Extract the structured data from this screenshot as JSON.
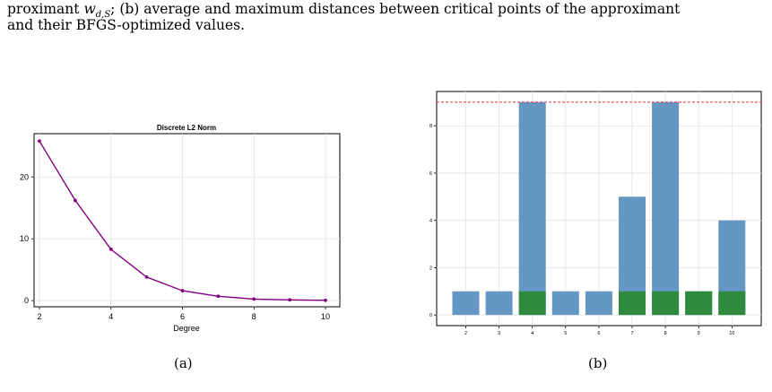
{
  "caption": {
    "line1_prefix": "proximant ",
    "line1_math": "w",
    "line1_sub": "d,S",
    "line1_suffix": "; (b) average and maximum distances between critical points of the approximant",
    "line2": "and their BFGS-optimized values."
  },
  "subfigure_labels": [
    "(a)",
    "(b)"
  ],
  "colors": {
    "line": "#800080",
    "bar_blue": "#6497c3",
    "bar_green": "#2e8b3e",
    "dashed": "#e0303a",
    "grid": "#e3e3e3"
  },
  "chart_data": [
    {
      "type": "line",
      "title": "Discrete L2 Norm",
      "xlabel": "Degree",
      "ylabel": "",
      "x": [
        2,
        3,
        4,
        5,
        6,
        7,
        8,
        9,
        10
      ],
      "y": [
        25.8,
        16.2,
        8.3,
        3.8,
        1.6,
        0.7,
        0.25,
        0.12,
        0.05
      ],
      "xticks": [
        2,
        4,
        6,
        8,
        10
      ],
      "yticks": [
        0,
        10,
        20
      ],
      "xlim": [
        1.85,
        10.4
      ],
      "ylim": [
        -1.0,
        27.0
      ],
      "grid": true
    },
    {
      "type": "bar",
      "title": "",
      "xlabel": "",
      "ylabel": "",
      "categories": [
        "2",
        "3",
        "4",
        "5",
        "6",
        "7",
        "8",
        "9",
        "10"
      ],
      "series": [
        {
          "values": [
            1,
            1,
            9,
            1,
            1,
            5,
            9,
            1,
            4
          ]
        },
        {
          "values": [
            0,
            0,
            1,
            0,
            0,
            1,
            1,
            1,
            1
          ]
        }
      ],
      "reference_line": 9,
      "yticks": [
        0,
        2,
        4,
        6,
        8
      ],
      "ylim": [
        -0.45,
        9.45
      ],
      "grid": true
    }
  ]
}
